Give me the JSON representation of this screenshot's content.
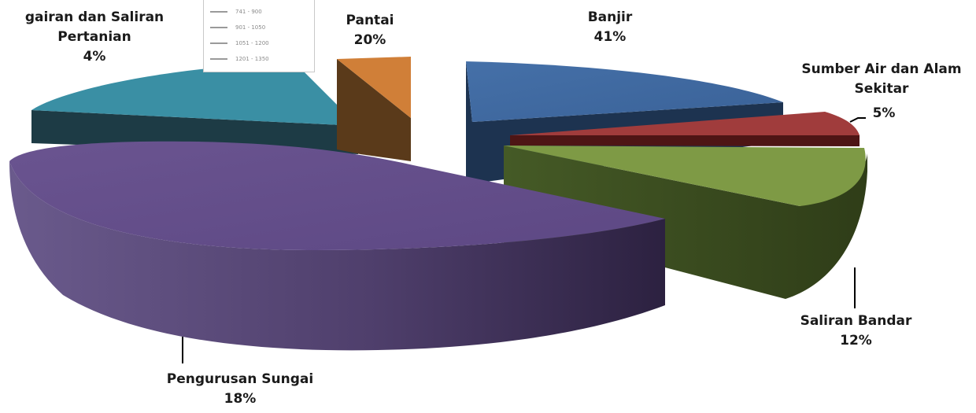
{
  "chart_data": {
    "type": "pie",
    "style": "exploded-3d",
    "slices": [
      {
        "label": "Banjir",
        "value": 41,
        "display": "41%",
        "color": "#4169a0"
      },
      {
        "label": "Sumber Air dan Alam Sekitar",
        "value": 5,
        "display": "5%",
        "color": "#a03c3c"
      },
      {
        "label": "Saliran Bandar",
        "value": 12,
        "display": "12%",
        "color": "#7e9a45"
      },
      {
        "label": "Pengurusan Sungai",
        "value": 18,
        "display": "18%",
        "color": "#674f87"
      },
      {
        "label": "Saliran dan Saliran Pertanian",
        "value": 4,
        "display": "4%",
        "color": "#3a8fa4"
      },
      {
        "label": "Pantai",
        "value": 20,
        "display": "20%",
        "color": "#d07f38"
      }
    ],
    "label_text": {
      "banjir": "Banjir",
      "sumber_line1": "Sumber Air dan Alam",
      "sumber_line2": "Sekitar",
      "saliran_bandar": "Saliran Bandar",
      "pengurusan": "Pengurusan Sungai",
      "pertanian_line1": "gairan dan Saliran",
      "pertanian_line2": "Pertanian",
      "pantai": "Pantai"
    },
    "legend_overlay": [
      "741 - 900",
      "901 - 1050",
      "1051 - 1200",
      "1201 - 1350"
    ]
  }
}
